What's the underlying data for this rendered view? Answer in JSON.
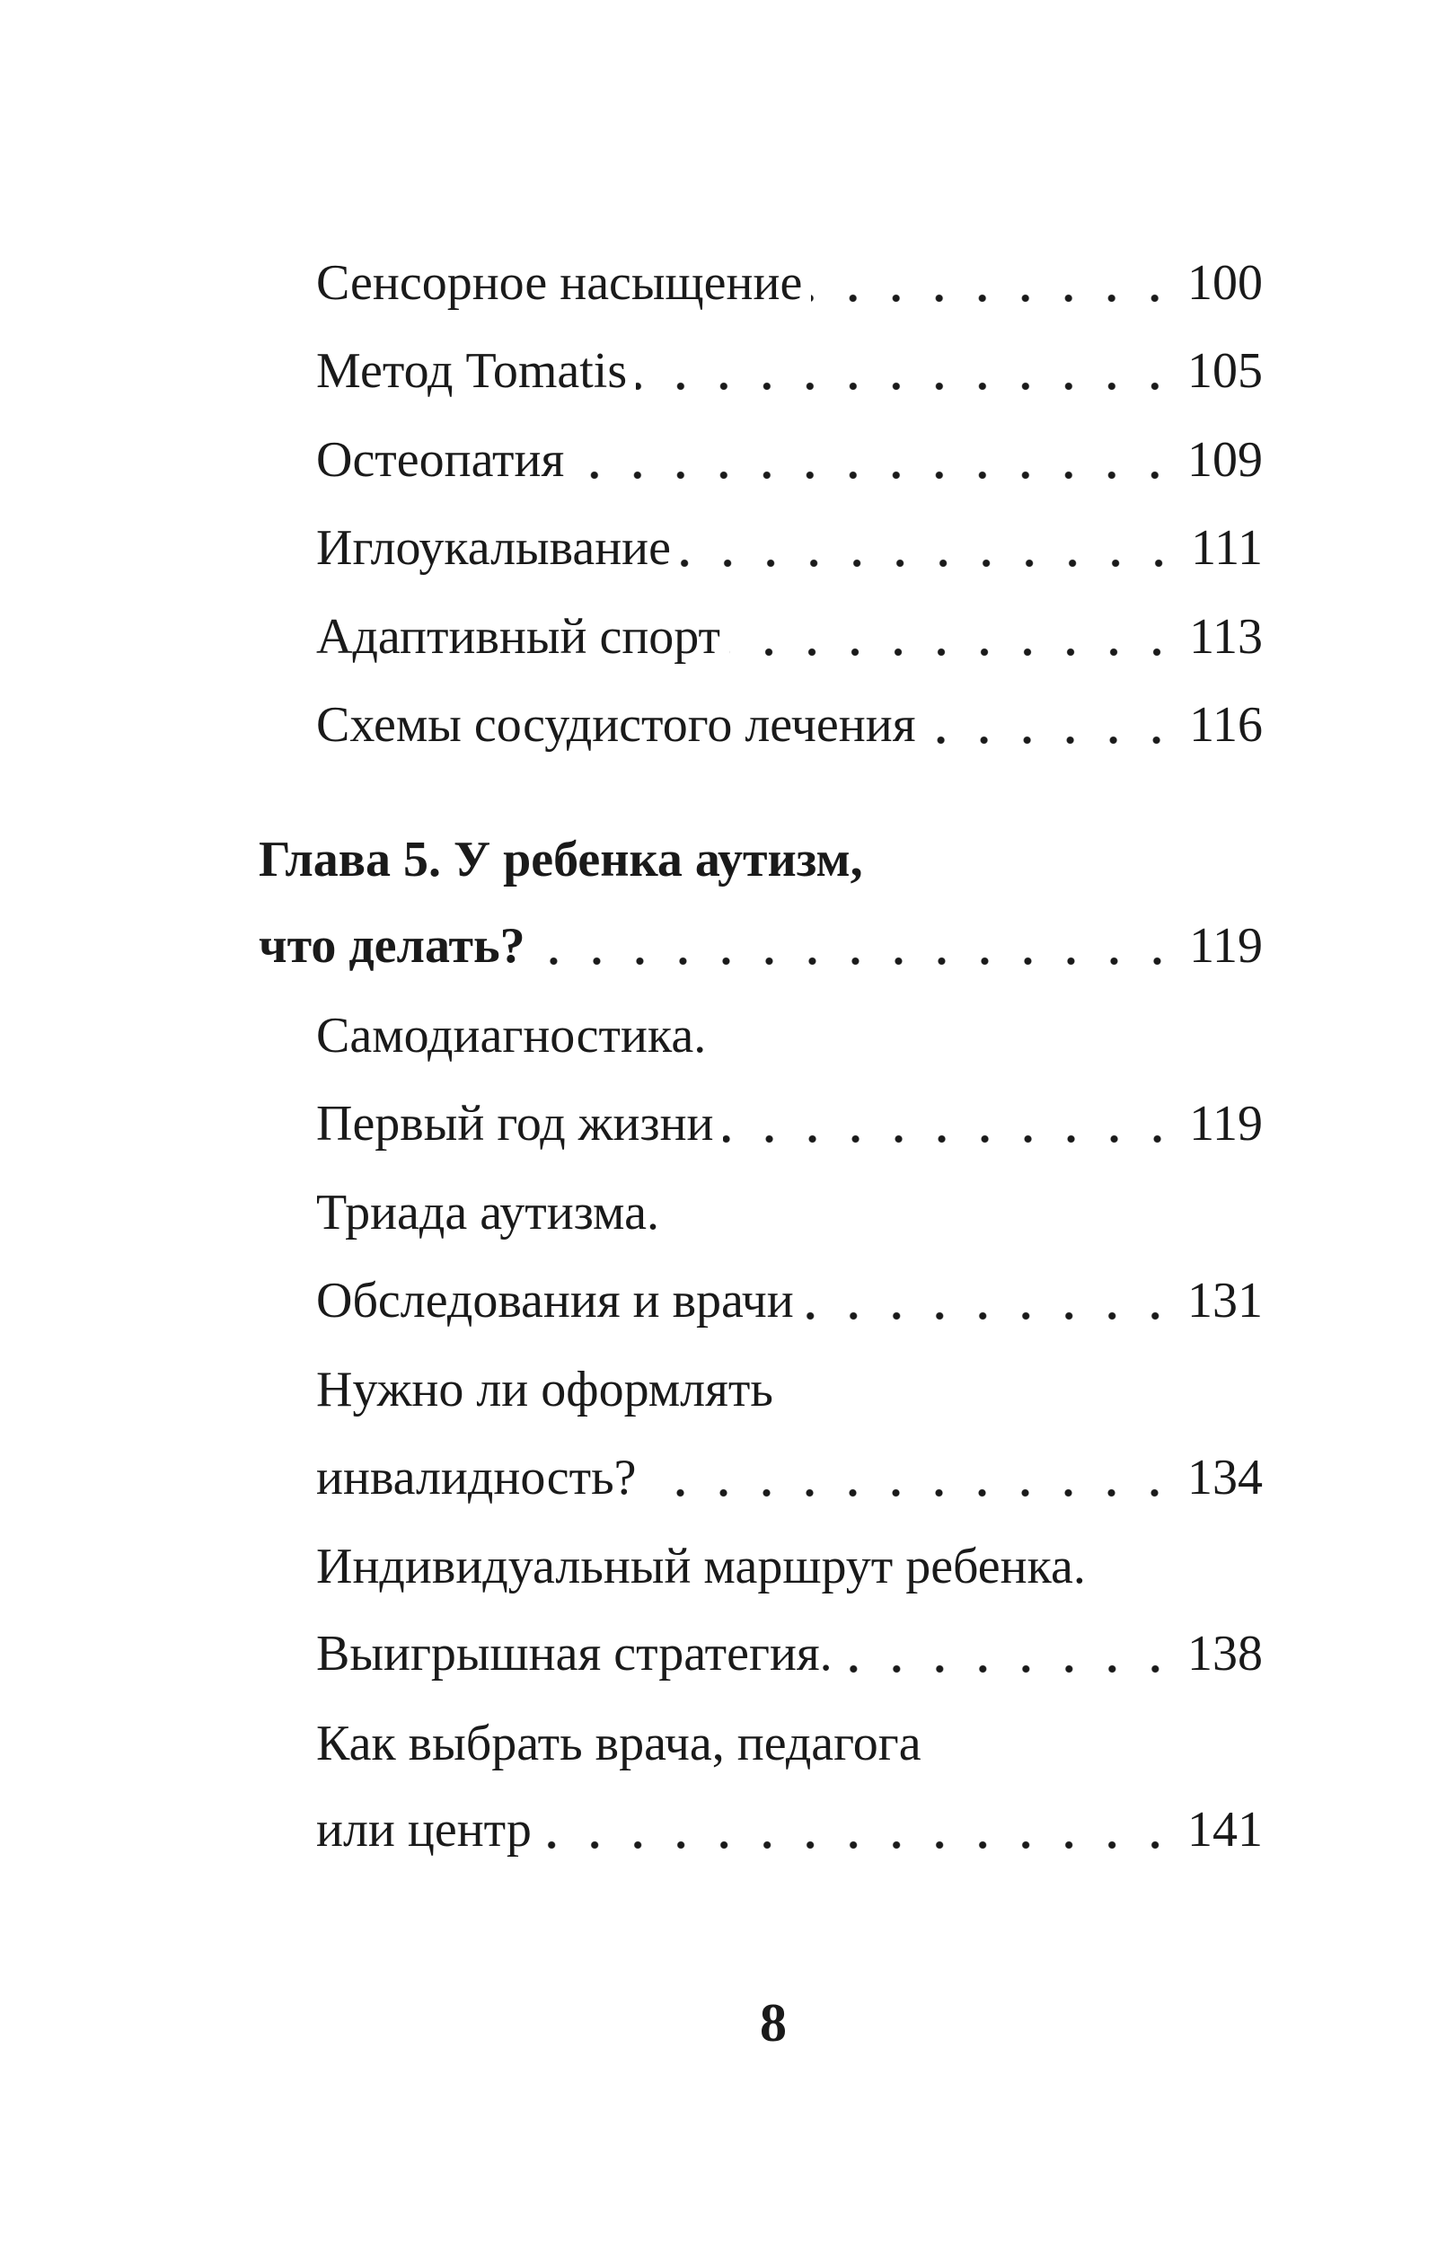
{
  "entries": [
    {
      "title": "Сенсорное насыщение",
      "page": "100"
    },
    {
      "title": "Метод Tomatis",
      "page": "105"
    },
    {
      "title": "Остеопатия",
      "page": "109"
    },
    {
      "title": "Иглоукалывание",
      "page": "111"
    },
    {
      "title": "Адаптивный спорт",
      "page": "113"
    },
    {
      "title": "Схемы сосудистого лечения",
      "page": "116"
    },
    {
      "title": "Глава 5. У ребенка аутизм,",
      "page": null
    },
    {
      "title": "что делать?",
      "page": "119"
    },
    {
      "title": "Самодиагностика.",
      "page": null
    },
    {
      "title": "Первый год жизни",
      "page": "119"
    },
    {
      "title": "Триада аутизма.",
      "page": null
    },
    {
      "title": "Обследования и врачи",
      "page": "131"
    },
    {
      "title": "Нужно ли оформлять",
      "page": null
    },
    {
      "title": "инвалидность?",
      "page": "134"
    },
    {
      "title": "Индивидуальный маршрут ребенка.",
      "page": null
    },
    {
      "title": "Выигрышная стратегия.",
      "page": "138"
    },
    {
      "title": "Как выбрать врача, педагога",
      "page": null
    },
    {
      "title": "или центр",
      "page": "141"
    }
  ],
  "page_number": "8"
}
